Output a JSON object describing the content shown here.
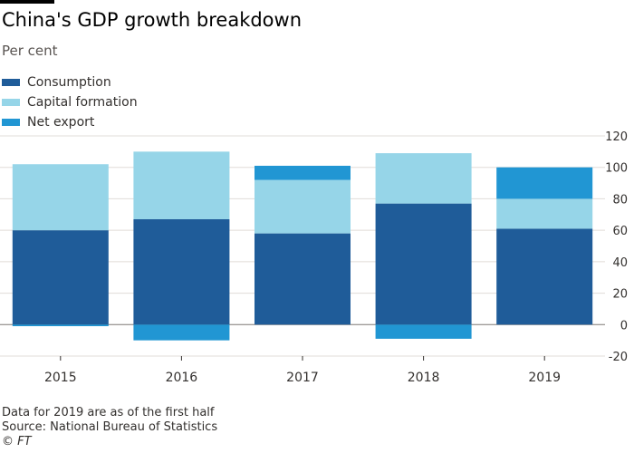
{
  "header": {
    "title": "China's GDP growth breakdown",
    "subtitle": "Per cent"
  },
  "footer": {
    "note": "Data for 2019 are as of the first half",
    "source": "Source: National Bureau of Statistics",
    "copyright": "© FT"
  },
  "chart_data": {
    "type": "bar",
    "stacked": true,
    "title": "China's GDP growth breakdown",
    "subtitle": "Per cent",
    "categories": [
      "2015",
      "2016",
      "2017",
      "2018",
      "2019"
    ],
    "series": [
      {
        "name": "Consumption",
        "color": "#1f5c99",
        "values": [
          60,
          67,
          58,
          77,
          61
        ]
      },
      {
        "name": "Capital formation",
        "color": "#96d5e8",
        "values": [
          42,
          43,
          34,
          32,
          19
        ]
      },
      {
        "name": "Net export",
        "color": "#2196d3",
        "values": [
          -1,
          -10,
          9,
          -9,
          20
        ]
      }
    ],
    "ylim": [
      -20,
      120
    ],
    "yticks": [
      -20,
      0,
      20,
      40,
      60,
      80,
      100,
      120
    ],
    "y_axis_side": "right",
    "grid": true,
    "legend_position": "top-left"
  }
}
